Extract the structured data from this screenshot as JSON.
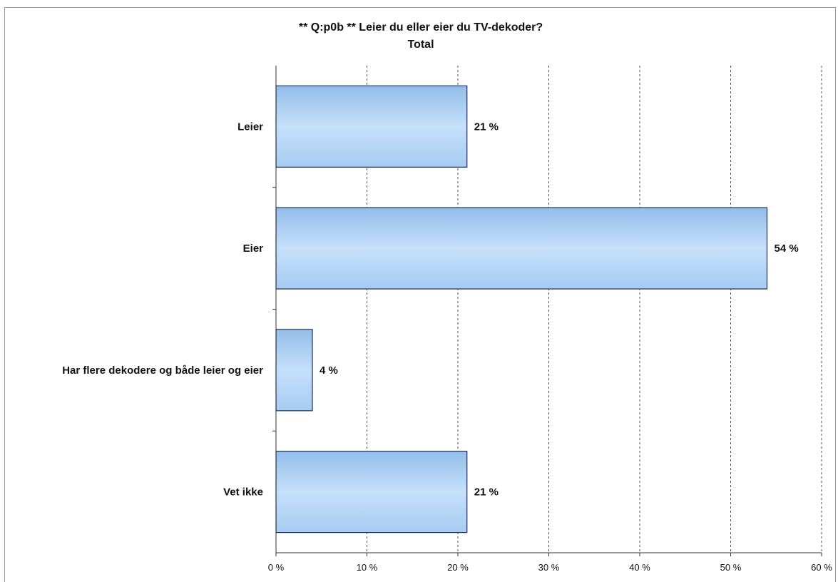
{
  "chart_data": {
    "type": "bar",
    "orientation": "horizontal",
    "title": "** Q:p0b ** Leier du eller eier du TV-dekoder?",
    "subtitle": "Total",
    "categories": [
      "Leier",
      "Eier",
      "Har flere dekodere og både leier og eier",
      "Vet ikke"
    ],
    "values": [
      21,
      54,
      4,
      21
    ],
    "data_labels": [
      "21 %",
      "54 %",
      "4 %",
      "21 %"
    ],
    "xlim": [
      0,
      60
    ],
    "ticks": [
      0,
      10,
      20,
      30,
      40,
      50,
      60
    ],
    "tick_labels": [
      "0 %",
      "10 %",
      "20 %",
      "30 %",
      "40 %",
      "50 %",
      "60 %"
    ],
    "grid": "vertical dashed",
    "legend": "none",
    "colors": {
      "bar_fill_light": "#c6e0fb",
      "bar_fill_dark": "#93bde9",
      "bar_stroke": "#1e2f55",
      "grid": "#555555"
    }
  }
}
